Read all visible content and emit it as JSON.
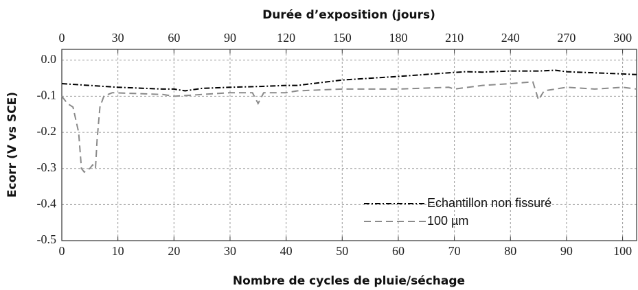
{
  "chart_data": {
    "type": "line",
    "x2_label": "Durée d’exposition (jours)",
    "x_label": "Nombre de cycles de pluie/séchage",
    "y_label": "Ecorr (V vs SCE)",
    "xlim": [
      0,
      102.5
    ],
    "xticks": [
      0,
      10,
      20,
      30,
      40,
      50,
      60,
      70,
      80,
      90,
      100
    ],
    "x2lim": [
      0,
      307.5
    ],
    "x2ticks": [
      0,
      30,
      60,
      90,
      120,
      150,
      180,
      210,
      240,
      270,
      300
    ],
    "ylim": [
      -0.5,
      0.03
    ],
    "yticks": [
      {
        "value": 0,
        "label": "0.0"
      },
      -0.1,
      -0.2,
      -0.3,
      -0.4,
      -0.5
    ],
    "grid": true,
    "legend": "lower right",
    "series": [
      {
        "name": "Echantillon non fissuré",
        "color": "#000000",
        "dash": "dashdot",
        "x": [
          0,
          10,
          18,
          20,
          22,
          25,
          30,
          35,
          40,
          42,
          50,
          60,
          69,
          72,
          75,
          80,
          85,
          88,
          90,
          95,
          100,
          102.5
        ],
        "values": [
          -0.065,
          -0.075,
          -0.08,
          -0.08,
          -0.085,
          -0.078,
          -0.075,
          -0.073,
          -0.07,
          -0.07,
          -0.055,
          -0.045,
          -0.035,
          -0.032,
          -0.033,
          -0.03,
          -0.03,
          -0.028,
          -0.032,
          -0.035,
          -0.038,
          -0.04
        ]
      },
      {
        "name": "100 µm",
        "color": "#8a8a8a",
        "dash": "dashed",
        "x": [
          0,
          1,
          2,
          3,
          3.5,
          4,
          5,
          5.5,
          6,
          6.3,
          6.8,
          7.5,
          9,
          18,
          20,
          25,
          30,
          34,
          35,
          36,
          40,
          42,
          50,
          60,
          69,
          70,
          75,
          80,
          84,
          85,
          86,
          90,
          95,
          100,
          102.5
        ],
        "values": [
          -0.1,
          -0.12,
          -0.13,
          -0.2,
          -0.3,
          -0.31,
          -0.3,
          -0.29,
          -0.3,
          -0.22,
          -0.13,
          -0.1,
          -0.09,
          -0.095,
          -0.1,
          -0.095,
          -0.09,
          -0.09,
          -0.12,
          -0.09,
          -0.09,
          -0.085,
          -0.08,
          -0.08,
          -0.075,
          -0.08,
          -0.07,
          -0.065,
          -0.06,
          -0.11,
          -0.085,
          -0.075,
          -0.08,
          -0.075,
          -0.08
        ]
      }
    ]
  }
}
